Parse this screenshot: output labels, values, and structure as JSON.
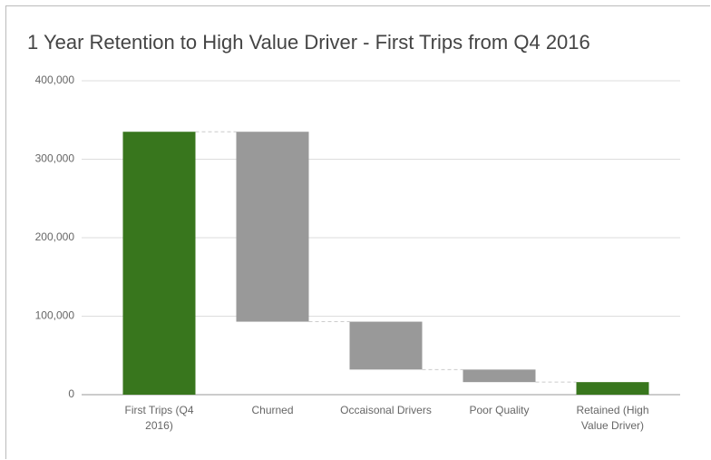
{
  "chart_data": {
    "type": "waterfall",
    "title": "1 Year Retention to High Value Driver - First Trips from Q4 2016",
    "categories": [
      "First Trips (Q4 2016)",
      "Churned",
      "Occaisonal Drivers",
      "Poor Quality",
      "Retained (High Value Driver)"
    ],
    "values": [
      335000,
      -242000,
      -61000,
      -16000,
      16000
    ],
    "measure": [
      "absolute",
      "relative",
      "relative",
      "relative",
      "total"
    ],
    "total_color": "#38761d",
    "change_color": "#999999",
    "ylim": [
      0,
      400000
    ],
    "yticks": [
      {
        "value": 0,
        "label": "0"
      },
      {
        "value": 100000,
        "label": "100,000"
      },
      {
        "value": 200000,
        "label": "200,000"
      },
      {
        "value": 300000,
        "label": "300,000"
      },
      {
        "value": 400000,
        "label": "400,000"
      }
    ],
    "grid": true
  }
}
